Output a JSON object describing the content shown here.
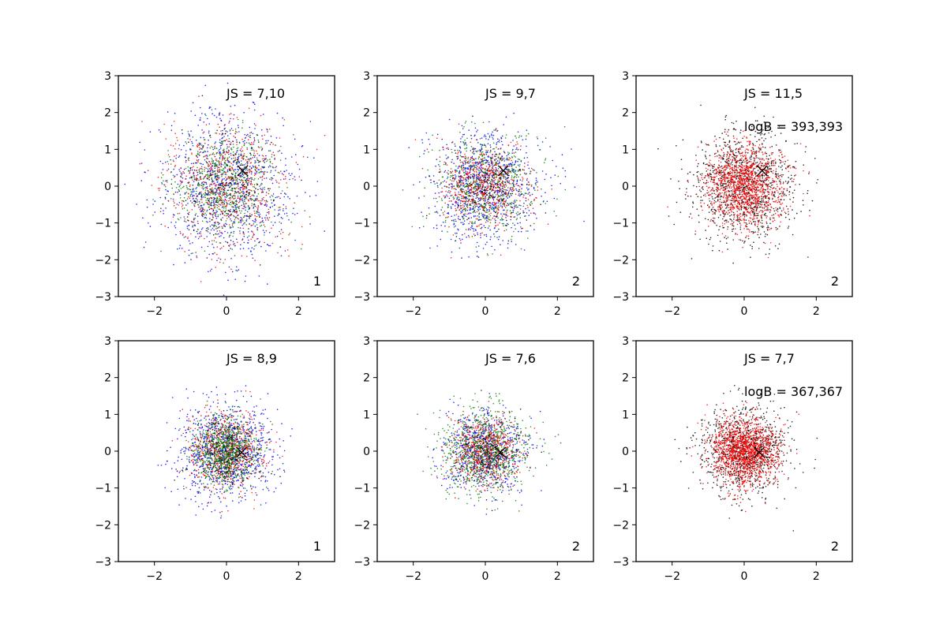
{
  "chart_data": [
    {
      "type": "scatter",
      "title": "",
      "xlabel": "",
      "ylabel": "",
      "xlim": [
        -3,
        3
      ],
      "ylim": [
        -3,
        3
      ],
      "xticks": [
        "−2",
        "0",
        "2"
      ],
      "yticks": [
        "−3",
        "−2",
        "−1",
        "0",
        "1",
        "2",
        "3"
      ],
      "js_label": "JS = 7,10",
      "logb_label": "",
      "corner_label": "1",
      "marker": {
        "x": 0.45,
        "y": 0.42
      },
      "series": [
        {
          "color": "#0000ff",
          "center": [
            0,
            0
          ],
          "sd": [
            0.95,
            1.0
          ],
          "n": 900
        },
        {
          "color": "#ff0000",
          "center": [
            0,
            0
          ],
          "sd": [
            0.8,
            0.85
          ],
          "n": 650
        },
        {
          "color": "#008000",
          "center": [
            0,
            0
          ],
          "sd": [
            0.75,
            0.75
          ],
          "n": 650
        },
        {
          "color": "#000000",
          "center": [
            0,
            0
          ],
          "sd": [
            0.7,
            0.7
          ],
          "n": 250
        }
      ]
    },
    {
      "type": "scatter",
      "title": "",
      "xlabel": "",
      "ylabel": "",
      "xlim": [
        -3,
        3
      ],
      "ylim": [
        -3,
        3
      ],
      "xticks": [
        "−2",
        "0",
        "2"
      ],
      "yticks": [
        "−3",
        "−2",
        "−1",
        "0",
        "1",
        "2",
        "3"
      ],
      "js_label": "JS = 9,7",
      "logb_label": "",
      "corner_label": "2",
      "marker": {
        "x": 0.5,
        "y": 0.42
      },
      "series": [
        {
          "color": "#0000ff",
          "center": [
            0,
            0
          ],
          "sd": [
            0.75,
            0.75
          ],
          "n": 850
        },
        {
          "color": "#ff0000",
          "center": [
            0,
            0
          ],
          "sd": [
            0.6,
            0.55
          ],
          "n": 650
        },
        {
          "color": "#008000",
          "center": [
            0,
            0
          ],
          "sd": [
            0.7,
            0.7
          ],
          "n": 600
        },
        {
          "color": "#000000",
          "center": [
            0,
            0
          ],
          "sd": [
            0.6,
            0.6
          ],
          "n": 200
        }
      ]
    },
    {
      "type": "scatter",
      "title": "",
      "xlabel": "",
      "ylabel": "",
      "xlim": [
        -3,
        3
      ],
      "ylim": [
        -3,
        3
      ],
      "xticks": [
        "−2",
        "0",
        "2"
      ],
      "yticks": [
        "−3",
        "−2",
        "−1",
        "0",
        "1",
        "2",
        "3"
      ],
      "js_label": "JS = 11,5",
      "logb_label": "logB = 393,393",
      "corner_label": "2",
      "marker": {
        "x": 0.5,
        "y": 0.42
      },
      "series": [
        {
          "color": "#000000",
          "center": [
            0,
            0
          ],
          "sd": [
            0.7,
            0.75
          ],
          "n": 1100
        },
        {
          "color": "#ff0000",
          "center": [
            0,
            0
          ],
          "sd": [
            0.55,
            0.55
          ],
          "n": 1300
        }
      ]
    },
    {
      "type": "scatter",
      "title": "",
      "xlabel": "",
      "ylabel": "",
      "xlim": [
        -3,
        3
      ],
      "ylim": [
        -3,
        3
      ],
      "xticks": [
        "−2",
        "0",
        "2"
      ],
      "yticks": [
        "−3",
        "−2",
        "−1",
        "0",
        "1",
        "2",
        "3"
      ],
      "js_label": "JS = 8,9",
      "logb_label": "",
      "corner_label": "1",
      "marker": {
        "x": 0.42,
        "y": -0.03
      },
      "series": [
        {
          "color": "#0000ff",
          "center": [
            0,
            0
          ],
          "sd": [
            0.65,
            0.65
          ],
          "n": 900
        },
        {
          "color": "#ff0000",
          "center": [
            0,
            0
          ],
          "sd": [
            0.5,
            0.5
          ],
          "n": 650
        },
        {
          "color": "#008000",
          "center": [
            0,
            0
          ],
          "sd": [
            0.45,
            0.45
          ],
          "n": 800
        },
        {
          "color": "#000000",
          "center": [
            0,
            0
          ],
          "sd": [
            0.5,
            0.5
          ],
          "n": 200
        }
      ]
    },
    {
      "type": "scatter",
      "title": "",
      "xlabel": "",
      "ylabel": "",
      "xlim": [
        -3,
        3
      ],
      "ylim": [
        -3,
        3
      ],
      "xticks": [
        "−2",
        "0",
        "2"
      ],
      "yticks": [
        "−3",
        "−2",
        "−1",
        "0",
        "1",
        "2",
        "3"
      ],
      "js_label": "JS = 7,6",
      "logb_label": "",
      "corner_label": "2",
      "marker": {
        "x": 0.42,
        "y": -0.03
      },
      "series": [
        {
          "color": "#0000ff",
          "center": [
            0,
            0
          ],
          "sd": [
            0.55,
            0.55
          ],
          "n": 650
        },
        {
          "color": "#ff0000",
          "center": [
            0,
            0
          ],
          "sd": [
            0.45,
            0.45
          ],
          "n": 650
        },
        {
          "color": "#008000",
          "center": [
            0,
            0
          ],
          "sd": [
            0.6,
            0.6
          ],
          "n": 800
        },
        {
          "color": "#000000",
          "center": [
            0,
            0
          ],
          "sd": [
            0.5,
            0.5
          ],
          "n": 200
        }
      ]
    },
    {
      "type": "scatter",
      "title": "",
      "xlabel": "",
      "ylabel": "",
      "xlim": [
        -3,
        3
      ],
      "ylim": [
        -3,
        3
      ],
      "xticks": [
        "−2",
        "0",
        "2"
      ],
      "yticks": [
        "−3",
        "−2",
        "−1",
        "0",
        "1",
        "2",
        "3"
      ],
      "js_label": "JS = 7,7",
      "logb_label": "logB = 367,367",
      "corner_label": "2",
      "marker": {
        "x": 0.42,
        "y": -0.03
      },
      "series": [
        {
          "color": "#000000",
          "center": [
            0,
            0
          ],
          "sd": [
            0.6,
            0.6
          ],
          "n": 1000
        },
        {
          "color": "#ff0000",
          "center": [
            0,
            0
          ],
          "sd": [
            0.45,
            0.45
          ],
          "n": 1400
        }
      ]
    }
  ]
}
